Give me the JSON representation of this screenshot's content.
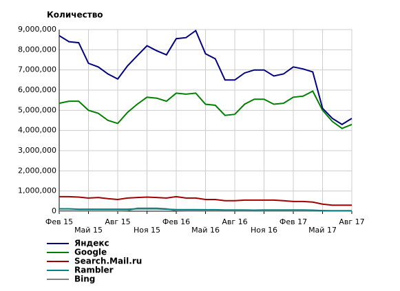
{
  "chart_data": {
    "type": "line",
    "title": "Количество",
    "categories": [
      "Фев 15",
      null,
      null,
      "Май 15",
      null,
      null,
      "Авг 15",
      null,
      null,
      "Ноя 15",
      null,
      null,
      "Фев 16",
      null,
      null,
      "Май 16",
      null,
      null,
      "Авг 16",
      null,
      null,
      "Ноя 16",
      null,
      null,
      "Фев 17",
      null,
      null,
      "Май 17",
      null,
      null,
      "Авг 17"
    ],
    "ylim": [
      0,
      9000000
    ],
    "yticks": [
      0,
      {
        "value": 1000000,
        "label": "1,000,000"
      },
      {
        "value": 2000000,
        "label": "2,000,000"
      },
      {
        "value": 3000000,
        "label": "3,000,000"
      },
      {
        "value": 4000000,
        "label": "4,000,000"
      },
      {
        "value": 5000000,
        "label": "5,000,000"
      },
      {
        "value": 6000000,
        "label": "6,000,000"
      },
      {
        "value": 7000000,
        "label": "7,000,000"
      },
      {
        "value": 8000000,
        "label": "8,000,000"
      },
      {
        "value": 9000000,
        "label": "9,000,000"
      }
    ],
    "grid": true,
    "series": [
      {
        "name": "Яндекс",
        "color": "#000080",
        "values": [
          8700000,
          8400000,
          8350000,
          7330000,
          7150000,
          6800000,
          6550000,
          7200000,
          7700000,
          8200000,
          7950000,
          7750000,
          8550000,
          8600000,
          8950000,
          7800000,
          7550000,
          6500000,
          6500000,
          6850000,
          7000000,
          7000000,
          6700000,
          6800000,
          7150000,
          7050000,
          6900000,
          5100000,
          4600000,
          4300000,
          4600000
        ]
      },
      {
        "name": "Google",
        "color": "#008000",
        "values": [
          5350000,
          5450000,
          5450000,
          5000000,
          4850000,
          4500000,
          4350000,
          4900000,
          5300000,
          5650000,
          5600000,
          5450000,
          5850000,
          5800000,
          5850000,
          5300000,
          5250000,
          4750000,
          4800000,
          5300000,
          5550000,
          5550000,
          5300000,
          5350000,
          5650000,
          5700000,
          5950000,
          5000000,
          4450000,
          4100000,
          4300000
        ]
      },
      {
        "name": "Search.Mail.ru",
        "color": "#a00000",
        "values": [
          720000,
          720000,
          700000,
          650000,
          680000,
          620000,
          580000,
          650000,
          680000,
          700000,
          680000,
          650000,
          720000,
          650000,
          650000,
          580000,
          580000,
          520000,
          520000,
          550000,
          550000,
          550000,
          550000,
          520000,
          480000,
          480000,
          450000,
          350000,
          300000,
          300000,
          300000
        ]
      },
      {
        "name": "Rambler",
        "color": "#008080",
        "values": [
          120000,
          120000,
          100000,
          100000,
          100000,
          100000,
          100000,
          100000,
          120000,
          120000,
          120000,
          100000,
          80000,
          80000,
          80000,
          70000,
          70000,
          60000,
          60000,
          60000,
          50000,
          60000,
          60000,
          60000,
          60000,
          60000,
          50000,
          30000,
          20000,
          20000,
          20000
        ]
      },
      {
        "name": "Bing",
        "color": "#808080",
        "values": [
          20000,
          20000,
          20000,
          20000,
          20000,
          20000,
          20000,
          30000,
          150000,
          150000,
          150000,
          120000,
          30000,
          20000,
          20000,
          20000,
          20000,
          20000,
          20000,
          20000,
          20000,
          20000,
          20000,
          20000,
          20000,
          20000,
          20000,
          20000,
          20000,
          20000,
          20000
        ]
      }
    ]
  }
}
